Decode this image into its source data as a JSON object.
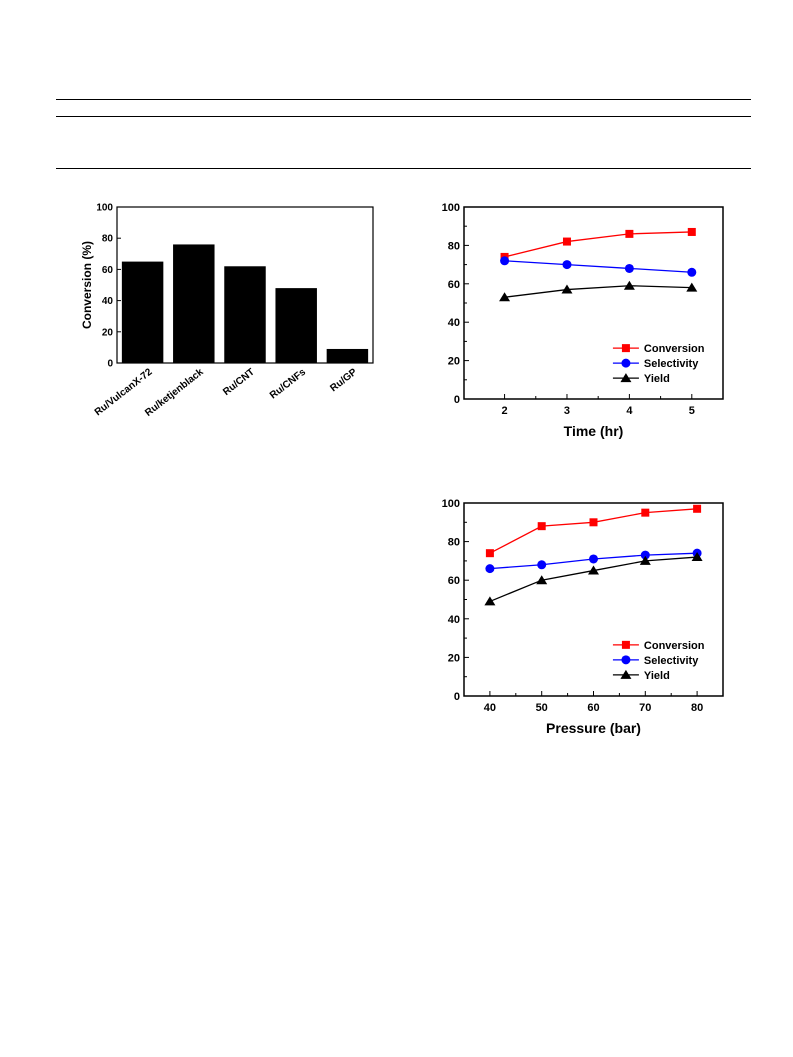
{
  "chart_data": [
    {
      "type": "bar",
      "categories": [
        "Ru/VulcanX-72",
        "Ru/ketjenblack",
        "Ru/CNT",
        "Ru/CNFs",
        "Ru/GP"
      ],
      "values": [
        65,
        76,
        62,
        48,
        9
      ],
      "title": "",
      "xlabel": "",
      "ylabel": "Conversion (%)",
      "ylim": [
        0,
        100
      ],
      "yticks": [
        "0",
        "20",
        "40",
        "60",
        "80",
        "100"
      ],
      "colors": {
        "bar": "#000000"
      }
    },
    {
      "type": "line",
      "title": "",
      "xlabel": "Time (hr)",
      "ylabel": "",
      "x": [
        2,
        3,
        4,
        5
      ],
      "xticks": [
        "2",
        "3",
        "4",
        "5"
      ],
      "yticks": [
        "0",
        "20",
        "40",
        "60",
        "80",
        "100"
      ],
      "xlim": [
        1.35,
        5.5
      ],
      "ylim": [
        0,
        100
      ],
      "legend_position": "bottom-right",
      "series": [
        {
          "name": "Conversion",
          "values": [
            74,
            82,
            86,
            87
          ],
          "color": "#ff0000",
          "marker": "square"
        },
        {
          "name": "Selectivity",
          "values": [
            72,
            70,
            68,
            66
          ],
          "color": "#0000ff",
          "marker": "circle"
        },
        {
          "name": "Yield",
          "values": [
            53,
            57,
            59,
            58
          ],
          "color": "#000000",
          "marker": "triangle"
        }
      ]
    },
    {
      "type": "line",
      "title": "",
      "xlabel": "Pressure (bar)",
      "ylabel": "",
      "x": [
        40,
        50,
        60,
        70,
        80
      ],
      "xticks": [
        "40",
        "50",
        "60",
        "70",
        "80"
      ],
      "yticks": [
        "0",
        "20",
        "40",
        "60",
        "80",
        "100"
      ],
      "xlim": [
        35,
        85
      ],
      "ylim": [
        0,
        100
      ],
      "legend_position": "bottom-right",
      "series": [
        {
          "name": "Conversion",
          "values": [
            74,
            88,
            90,
            95,
            97
          ],
          "color": "#ff0000",
          "marker": "square"
        },
        {
          "name": "Selectivity",
          "values": [
            66,
            68,
            71,
            73,
            74
          ],
          "color": "#0000ff",
          "marker": "circle"
        },
        {
          "name": "Yield",
          "values": [
            49,
            60,
            65,
            70,
            72
          ],
          "color": "#000000",
          "marker": "triangle"
        }
      ]
    }
  ]
}
